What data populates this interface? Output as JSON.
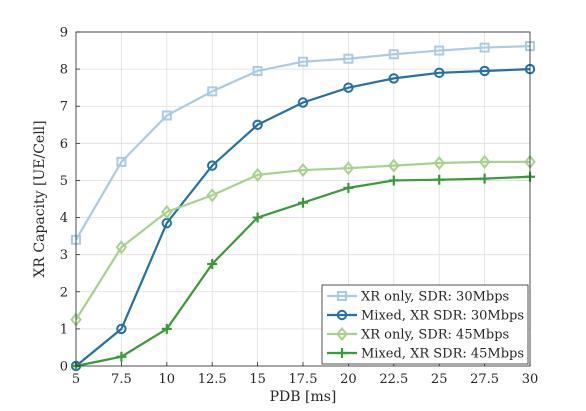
{
  "chart_data": {
    "type": "line",
    "title": "",
    "xlabel": "PDB [ms]",
    "ylabel": "XR Capacity [UE/Cell]",
    "x": [
      5,
      7.5,
      10,
      12.5,
      15,
      17.5,
      20,
      22.5,
      25,
      27.5,
      30
    ],
    "xlim": [
      5,
      30
    ],
    "ylim": [
      0,
      9
    ],
    "xticks": [
      "5",
      "7.5",
      "10",
      "12.5",
      "15",
      "17.5",
      "20",
      "22.5",
      "25",
      "27.5",
      "30"
    ],
    "yticks": [
      "0",
      "1",
      "2",
      "3",
      "4",
      "5",
      "6",
      "7",
      "8",
      "9"
    ],
    "grid": true,
    "legend_position": "bottom-right",
    "series": [
      {
        "name": "XR only, SDR: 30Mbps",
        "color": "#a9cce3",
        "marker": "square",
        "values": [
          3.4,
          5.5,
          6.75,
          7.4,
          7.95,
          8.2,
          8.28,
          8.4,
          8.5,
          8.58,
          8.62
        ]
      },
      {
        "name": "Mixed, XR SDR: 30Mbps",
        "color": "#2471a3",
        "marker": "circle",
        "values": [
          0,
          1.0,
          3.85,
          5.4,
          6.5,
          7.1,
          7.5,
          7.75,
          7.9,
          7.95,
          8.0
        ]
      },
      {
        "name": "XR only, SDR: 45Mbps",
        "color": "#a9d18e",
        "marker": "diamond",
        "values": [
          1.25,
          3.2,
          4.15,
          4.6,
          5.15,
          5.28,
          5.33,
          5.4,
          5.47,
          5.5,
          5.5
        ]
      },
      {
        "name": "Mixed, XR SDR: 45Mbps",
        "color": "#3a9a3a",
        "marker": "plus",
        "values": [
          0,
          0.25,
          1.0,
          2.75,
          4.0,
          4.4,
          4.8,
          5.0,
          5.02,
          5.05,
          5.1
        ]
      }
    ]
  }
}
